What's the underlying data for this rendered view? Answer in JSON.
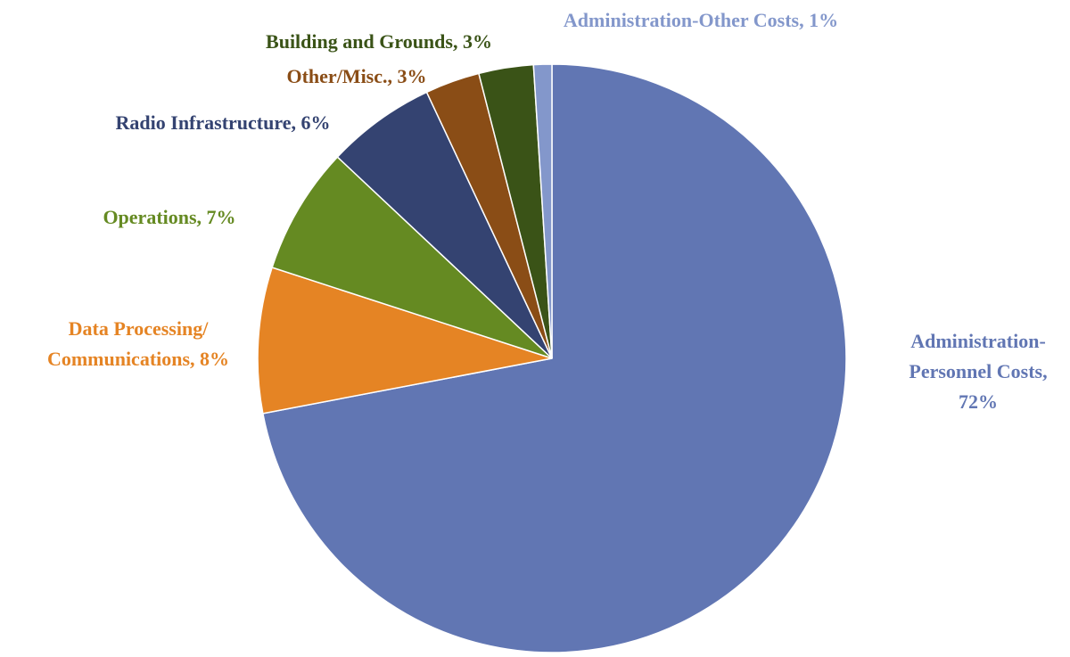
{
  "chart_data": {
    "type": "pie",
    "title": "",
    "start_angle_deg": 0,
    "direction": "clockwise",
    "slices": [
      {
        "label_lines": [
          "Administration-",
          "Personnel Costs,",
          "72%"
        ],
        "name": "Administration-Personnel Costs",
        "value": 72,
        "color": "#6176B3"
      },
      {
        "label_lines": [
          "Data Processing/",
          "Communications, 8%"
        ],
        "name": "Data Processing/Communications",
        "value": 8,
        "color": "#E58424"
      },
      {
        "label_lines": [
          "Operations, 7%"
        ],
        "name": "Operations",
        "value": 7,
        "color": "#658A22"
      },
      {
        "label_lines": [
          "Radio Infrastructure, 6%"
        ],
        "name": "Radio Infrastructure",
        "value": 6,
        "color": "#344371"
      },
      {
        "label_lines": [
          "Other/Misc., 3%"
        ],
        "name": "Other/Misc.",
        "value": 3,
        "color": "#8A4D16"
      },
      {
        "label_lines": [
          "Building and Grounds, 3%"
        ],
        "name": "Building and Grounds",
        "value": 3,
        "color": "#3A5317"
      },
      {
        "label_lines": [
          "Administration-Other Costs, 1%"
        ],
        "name": "Administration-Other Costs",
        "value": 1,
        "color": "#8397CB"
      }
    ],
    "label_colors": [
      "#6176B3",
      "#E58424",
      "#658A22",
      "#344371",
      "#8A4D16",
      "#3A5317",
      "#8397CB"
    ]
  }
}
